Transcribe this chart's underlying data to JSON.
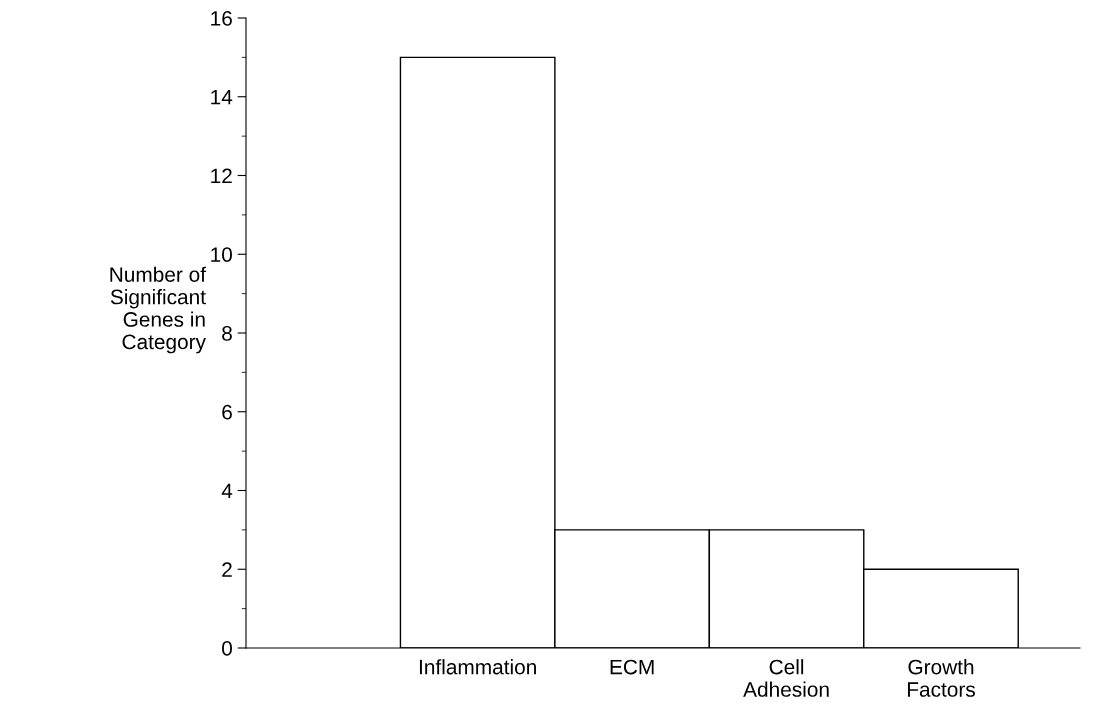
{
  "chart_data": {
    "type": "bar",
    "ylabel": "Number of\nSignificant\nGenes in\nCategory",
    "categories": [
      "Inflammation",
      "ECM",
      "Cell\nAdhesion",
      "Growth\nFactors"
    ],
    "values": [
      15,
      3,
      3,
      2
    ],
    "color": "#ffffff",
    "ylim": [
      0,
      16
    ],
    "yticks": [
      0,
      2,
      4,
      6,
      8,
      10,
      12,
      14,
      16
    ],
    "grid": false,
    "legend": false
  }
}
